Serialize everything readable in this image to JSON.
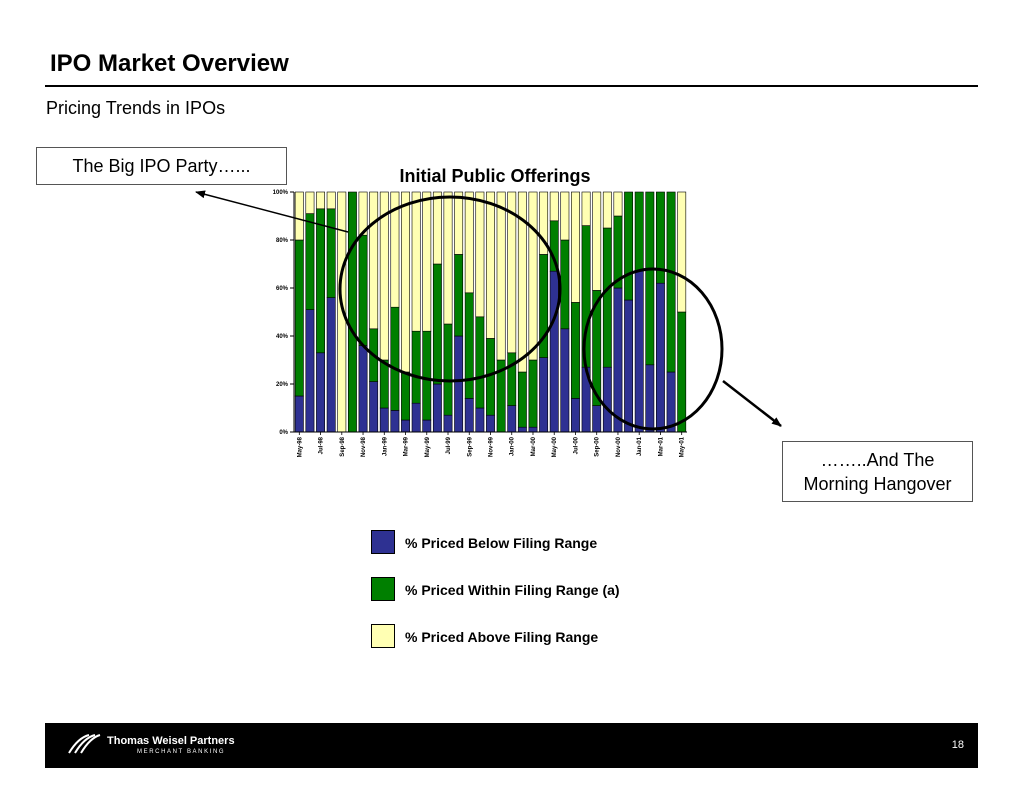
{
  "page": {
    "title": "IPO Market Overview",
    "subtitle": "Pricing Trends in IPOs",
    "callout_left": "The Big IPO Party…...",
    "callout_right_line1": "……..And The",
    "callout_right_line2": "Morning Hangover",
    "footer_brand": "Thomas Weisel Partners",
    "footer_sub": "MERCHANT BANKING",
    "page_number": "18"
  },
  "colors": {
    "below": "#2e3192",
    "within": "#007f00",
    "above": "#ffffb3"
  },
  "chart_data": {
    "type": "bar",
    "stacked": true,
    "title": "Initial Public Offerings",
    "xlabel": "",
    "ylabel": "",
    "ylim": [
      0,
      100
    ],
    "yticks": [
      "0%",
      "20%",
      "40%",
      "60%",
      "80%",
      "100%"
    ],
    "categories": [
      "May-98",
      "Jun-98",
      "Jul-98",
      "Aug-98",
      "Sep-98",
      "Oct-98",
      "Nov-98",
      "Dec-98",
      "Jan-99",
      "Feb-99",
      "Mar-99",
      "Apr-99",
      "May-99",
      "Jun-99",
      "Jul-99",
      "Aug-99",
      "Sep-99",
      "Oct-99",
      "Nov-99",
      "Dec-99",
      "Jan-00",
      "Feb-00",
      "Mar-00",
      "Apr-00",
      "May-00",
      "Jun-00",
      "Jul-00",
      "Aug-00",
      "Sep-00",
      "Oct-00",
      "Nov-00",
      "Dec-00",
      "Jan-01",
      "Feb-01",
      "Mar-01",
      "Apr-01",
      "May-01"
    ],
    "tick_labels": [
      "May-98",
      "Jul-98",
      "Sep-98",
      "Nov-98",
      "Jan-99",
      "Mar-99",
      "May-99",
      "Jul-99",
      "Sep-99",
      "Nov-99",
      "Jan-00",
      "Mar-00",
      "May-00",
      "Jul-00",
      "Sep-00",
      "Nov-00",
      "Jan-01",
      "Mar-01",
      "May-01"
    ],
    "legend_position": "bottom",
    "series": [
      {
        "name": "% Priced Below Filing Range",
        "values": [
          15,
          51,
          33,
          56,
          0,
          0,
          36,
          21,
          10,
          9,
          5,
          12,
          5,
          20,
          7,
          40,
          14,
          10,
          7,
          0,
          11,
          2,
          2,
          31,
          67,
          43,
          14,
          27,
          11,
          27,
          60,
          55,
          67,
          28,
          62,
          25,
          0
        ]
      },
      {
        "name": "% Priced Within Filing Range (a)",
        "values": [
          65,
          40,
          60,
          37,
          0,
          100,
          46,
          22,
          20,
          43,
          20,
          30,
          37,
          50,
          38,
          34,
          44,
          38,
          32,
          30,
          22,
          23,
          28,
          43,
          21,
          37,
          40,
          59,
          48,
          58,
          30,
          45,
          33,
          72,
          38,
          75,
          50
        ]
      },
      {
        "name": "% Priced Above Filing Range",
        "values": [
          20,
          9,
          7,
          7,
          100,
          0,
          18,
          57,
          70,
          48,
          75,
          58,
          58,
          30,
          55,
          26,
          42,
          52,
          61,
          70,
          67,
          75,
          70,
          26,
          12,
          20,
          46,
          14,
          41,
          15,
          10,
          0,
          0,
          0,
          0,
          0,
          50
        ]
      }
    ]
  }
}
